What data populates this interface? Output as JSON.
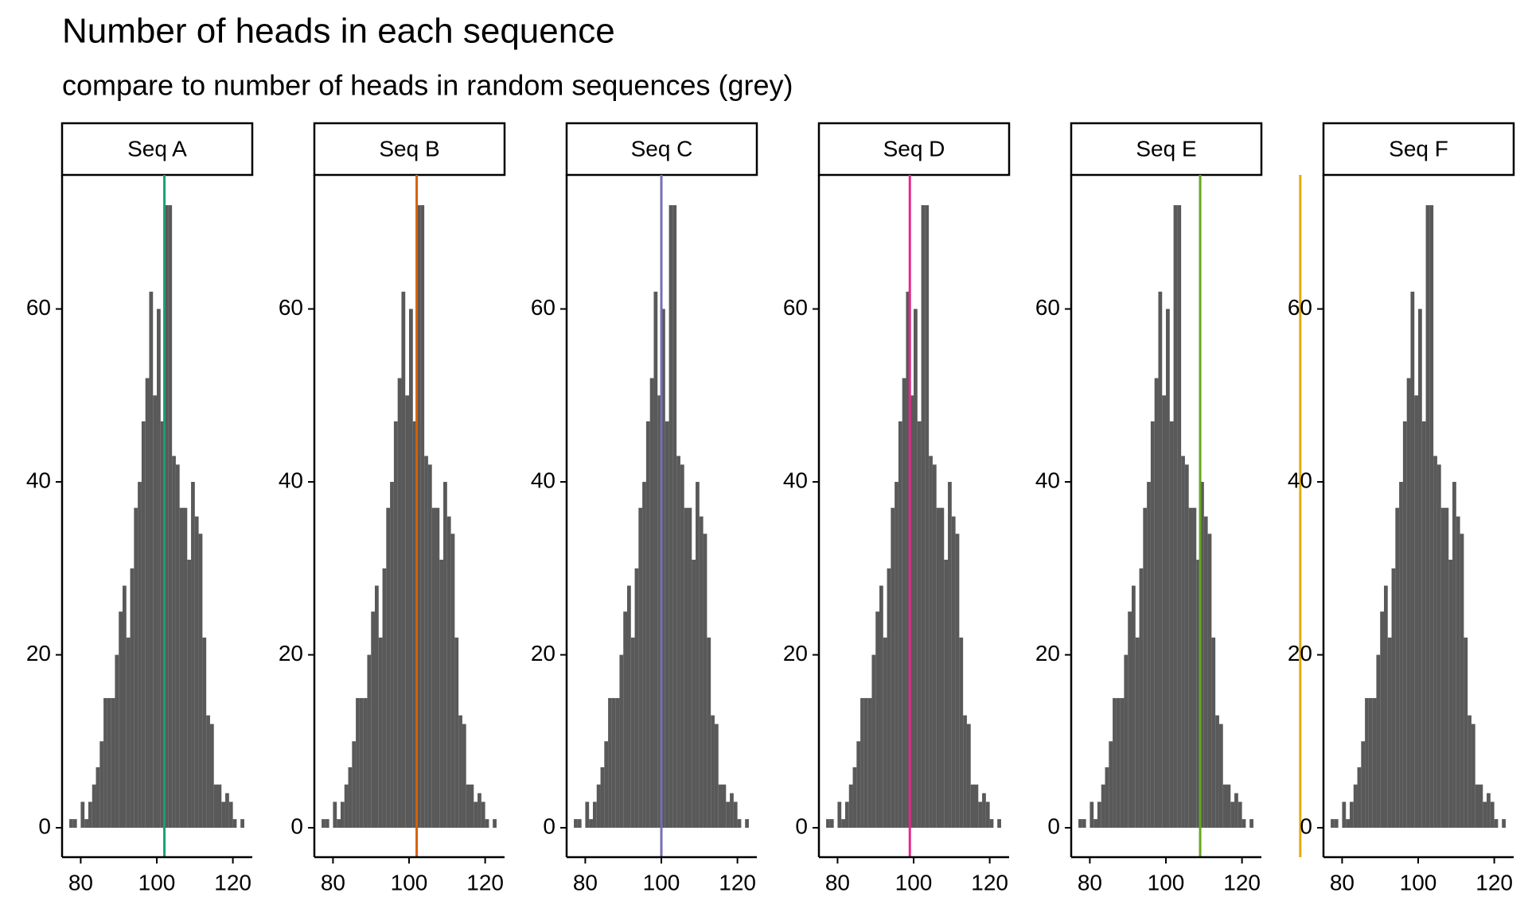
{
  "chart_data": {
    "type": "histogram",
    "title": "Number of heads in each sequence",
    "subtitle": "compare to number of heads in random sequences (grey)",
    "bins": [
      77,
      78,
      79,
      80,
      81,
      82,
      83,
      84,
      85,
      86,
      87,
      88,
      89,
      90,
      91,
      92,
      93,
      94,
      95,
      96,
      97,
      98,
      99,
      100,
      101,
      102,
      103,
      104,
      105,
      106,
      107,
      108,
      109,
      110,
      111,
      112,
      113,
      114,
      115,
      116,
      117,
      118,
      119,
      120,
      121,
      122,
      123
    ],
    "values": [
      1,
      1,
      0,
      3,
      1,
      3,
      5,
      7,
      10,
      15,
      15,
      15,
      20,
      25,
      28,
      22,
      30,
      37,
      40,
      47,
      52,
      62,
      50,
      60,
      47,
      72,
      72,
      43,
      42,
      37,
      37,
      31,
      40,
      36,
      34,
      22,
      13,
      12,
      5,
      5,
      3,
      4,
      3,
      1,
      0,
      1
    ],
    "color": "#595959",
    "facets": [
      {
        "name": "Seq A",
        "value": 102,
        "color": "#1b9e77"
      },
      {
        "name": "Seq B",
        "value": 102,
        "color": "#d95f02"
      },
      {
        "name": "Seq C",
        "value": 100,
        "color": "#7570b3"
      },
      {
        "name": "Seq D",
        "value": 99,
        "color": "#e7298a"
      },
      {
        "name": "Seq E",
        "value": 109,
        "color": "#66a61e"
      },
      {
        "name": "Seq F",
        "value": 69,
        "color": "#e6ab02"
      }
    ],
    "xlim": [
      75.1,
      125.1
    ],
    "xticks": [
      80,
      100,
      120
    ],
    "ylim": [
      -3.4,
      75.5
    ],
    "yticks": [
      0,
      20,
      40,
      60
    ]
  }
}
